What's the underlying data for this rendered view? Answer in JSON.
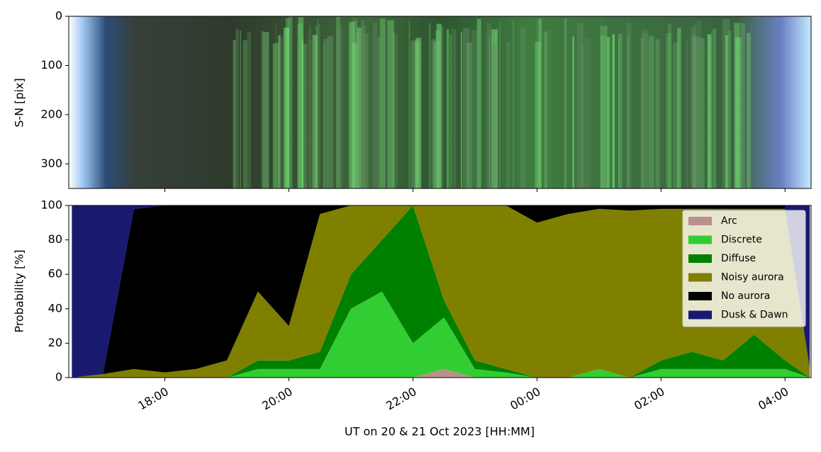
{
  "chart_data": [
    {
      "type": "image",
      "ylabel": "S-N [pix]",
      "ylim": [
        350,
        0
      ],
      "yticks": [
        0,
        100,
        200,
        300
      ]
    },
    {
      "type": "area",
      "stacked": true,
      "legend": "upper right",
      "xlabel": "UT on 20 & 21 Oct 2023 [HH:MM]",
      "ylabel": "Probability [%]",
      "x": [
        16.5,
        17.0,
        17.5,
        18.0,
        18.5,
        19.0,
        19.5,
        20.0,
        20.5,
        21.0,
        21.5,
        22.0,
        22.5,
        23.0,
        23.5,
        24.0,
        24.5,
        25.0,
        25.5,
        26.0,
        26.5,
        27.0,
        27.5,
        28.0,
        28.4
      ],
      "xlim": [
        16.45,
        28.42
      ],
      "xticks": [
        {
          "value": 18,
          "label": "18:00"
        },
        {
          "value": 20,
          "label": "20:00"
        },
        {
          "value": 22,
          "label": "22:00"
        },
        {
          "value": 24,
          "label": "00:00"
        },
        {
          "value": 26,
          "label": "02:00"
        },
        {
          "value": 28,
          "label": "04:00"
        }
      ],
      "ylim": [
        0,
        100
      ],
      "yticks": [
        0,
        20,
        40,
        60,
        80,
        100
      ],
      "series": [
        {
          "name": "Arc",
          "color": "#bc8f8f",
          "values": [
            0,
            0,
            0,
            0,
            0,
            0,
            0,
            0,
            0,
            0,
            0,
            0,
            5,
            0,
            0,
            0,
            0,
            0,
            0,
            0,
            0,
            0,
            0,
            0,
            0
          ]
        },
        {
          "name": "Discrete",
          "color": "#32cd32",
          "values": [
            0,
            0,
            0,
            0,
            0,
            0,
            5,
            5,
            5,
            40,
            50,
            20,
            30,
            5,
            3,
            0,
            0,
            5,
            0,
            5,
            5,
            5,
            5,
            5,
            0
          ]
        },
        {
          "name": "Diffuse",
          "color": "#008000",
          "values": [
            0,
            0,
            0,
            0,
            0,
            0,
            5,
            5,
            10,
            20,
            30,
            80,
            10,
            5,
            2,
            0,
            0,
            0,
            0,
            5,
            10,
            5,
            20,
            5,
            0
          ]
        },
        {
          "name": "Noisy aurora",
          "color": "#808000",
          "values": [
            0,
            2,
            5,
            3,
            5,
            10,
            40,
            20,
            80,
            40,
            20,
            0,
            55,
            90,
            95,
            90,
            95,
            93,
            97,
            88,
            83,
            88,
            73,
            88,
            5
          ]
        },
        {
          "name": "No aurora",
          "color": "#000000",
          "values": [
            0,
            0,
            93,
            97,
            95,
            90,
            50,
            70,
            5,
            0,
            0,
            0,
            0,
            0,
            0,
            10,
            5,
            2,
            3,
            2,
            2,
            2,
            2,
            2,
            0
          ]
        },
        {
          "name": "Dusk & Dawn",
          "color": "#191970",
          "values": [
            100,
            98,
            2,
            0,
            0,
            0,
            0,
            0,
            0,
            0,
            0,
            0,
            0,
            0,
            0,
            0,
            0,
            0,
            0,
            0,
            0,
            0,
            0,
            0,
            95
          ]
        }
      ]
    }
  ]
}
